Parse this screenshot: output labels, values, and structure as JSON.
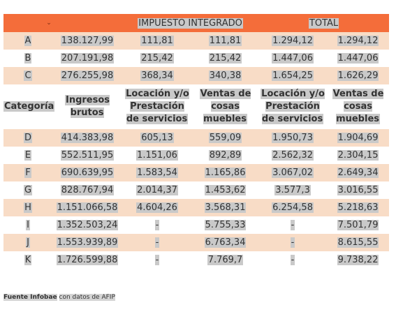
{
  "table": {
    "group_header": [
      "IMPUESTO INTEGRADO",
      "TOTAL"
    ],
    "top_rows": [
      [
        "A",
        "138.127,99",
        "111,81",
        "111,81",
        "1.294,12",
        "1.294,12"
      ],
      [
        "B",
        "207.191,98",
        "215,42",
        "215,42",
        "1.447,06",
        "1.447,06"
      ],
      [
        "C",
        "276.255,98",
        "368,34",
        "340,38",
        "1.654,25",
        "1.626,29"
      ]
    ],
    "columns": [
      "Categoría",
      "Ingresos brutos",
      "Locación y/o Prestación de servicios",
      "Ventas de cosas muebles",
      "Locación y/o Prestación de servicios",
      "Ventas de cosas muebles"
    ],
    "rows": [
      [
        "D",
        "414.383,98",
        "605,13",
        "559,09",
        "1.950,73",
        "1.904,69"
      ],
      [
        "E",
        "552.511,95",
        "1.151,06",
        "892,89",
        "2.562,32",
        "2.304,15"
      ],
      [
        "F",
        "690.639,95",
        "1.583,54",
        "1.165,86",
        "3.067,02",
        "2.649,34"
      ],
      [
        "G",
        "828.767,94",
        "2.014,37",
        "1.453,62",
        "3.577,3",
        "3.016,55"
      ],
      [
        "H",
        "1.151.066,58",
        "4.604,26",
        "3.568,31",
        "6.254,58",
        "5.218,63"
      ],
      [
        "I",
        "1.352.503,24",
        "-",
        "5.755,33",
        "-",
        "7.501,79"
      ],
      [
        "J",
        "1.553.939,89",
        "-",
        "6.763,34",
        "-",
        "8.615,55"
      ],
      [
        "K",
        "1.726.599,88",
        "-",
        "7.769,7",
        "-",
        "9.738,22"
      ]
    ]
  },
  "footer": {
    "source": "Fuente Infobae",
    "note": "con datos de AFIP"
  }
}
